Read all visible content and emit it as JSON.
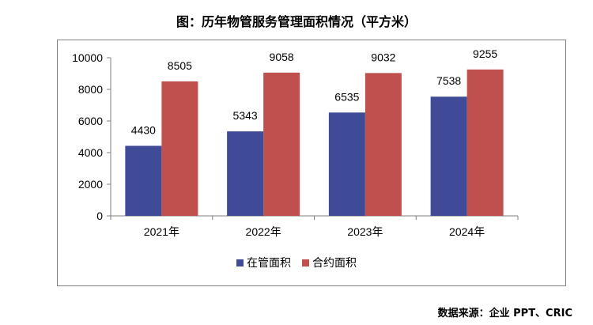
{
  "title": "图：历年物管服务管理面积情况（平方米）",
  "source": "数据来源：企业 PPT、CRIC",
  "chart_data": {
    "type": "bar",
    "categories": [
      "2021年",
      "2022年",
      "2023年",
      "2024年"
    ],
    "series": [
      {
        "name": "在管面积",
        "values": [
          4430,
          5343,
          6535,
          7538
        ],
        "color": "#3f4b96"
      },
      {
        "name": "合约面积",
        "values": [
          8505,
          9058,
          9032,
          9255
        ],
        "color": "#c0504d"
      }
    ],
    "ylim": [
      0,
      10000
    ],
    "yticks": [
      "0",
      "2000",
      "4000",
      "6000",
      "8000",
      "10000"
    ],
    "grid": false,
    "legend": "bottom"
  }
}
